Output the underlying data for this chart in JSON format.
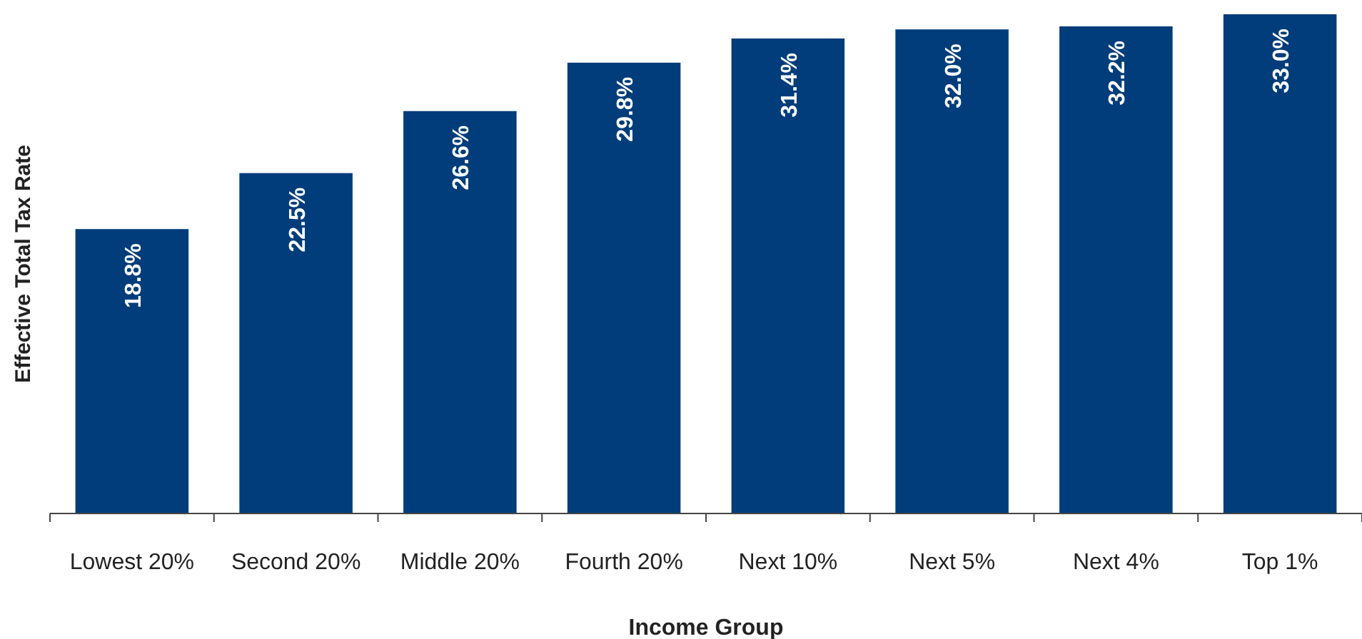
{
  "chart_data": {
    "type": "bar",
    "xlabel": "Income Group",
    "ylabel": "Effective Total Tax Rate",
    "categories": [
      "Lowest 20%",
      "Second 20%",
      "Middle 20%",
      "Fourth 20%",
      "Next 10%",
      "Next 5%",
      "Next 4%",
      "Top 1%"
    ],
    "values": [
      18.8,
      22.5,
      26.6,
      29.8,
      31.4,
      32.0,
      32.2,
      33.0
    ],
    "value_labels": [
      "18.8%",
      "22.5%",
      "26.6%",
      "29.8%",
      "31.4%",
      "32.0%",
      "32.2%",
      "33.0%"
    ],
    "color": "#003d7a",
    "ylim": [
      0,
      33
    ],
    "tick_labels": "x"
  }
}
